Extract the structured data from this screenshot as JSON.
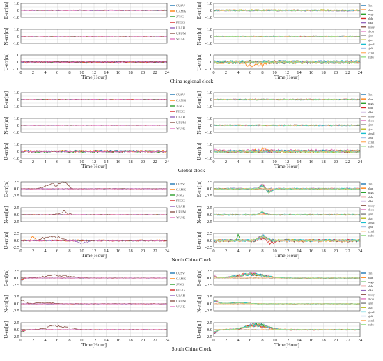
{
  "figure": {
    "captions": [
      "China regional clock",
      "Global clock",
      "North China Clock",
      "South China Clock"
    ],
    "xlabel": "Time[Hour]",
    "ylabels": [
      "E-err[m]",
      "N-err[m]",
      "U-err[m]"
    ],
    "xticks": [
      0,
      2,
      4,
      6,
      8,
      10,
      12,
      14,
      16,
      18,
      20,
      22,
      24
    ]
  },
  "legends": {
    "left": [
      "CUSV",
      "GAMG",
      "JFNG",
      "PTGG",
      "ULAB",
      "URUM",
      "WUH2"
    ],
    "right": [
      "flin",
      "hlun",
      "hngs",
      "hldr",
      "hlkt",
      "nmsy",
      "zhon",
      "sjzn",
      "sjsc",
      "sjhsd",
      "sjnk",
      "yxml",
      "mdw"
    ]
  },
  "colors": {
    "left": [
      "#1f77b4",
      "#ff7f0e",
      "#2ca02c",
      "#d62728",
      "#9467bd",
      "#8c564b",
      "#e377c2"
    ],
    "right": [
      "#1f77b4",
      "#ff7f0e",
      "#2ca02c",
      "#d62728",
      "#9467bd",
      "#8c564b",
      "#e377c2",
      "#7f7f7f",
      "#bcbd22",
      "#17becf",
      "#aec7e8",
      "#ffbb78",
      "#98df8a"
    ]
  },
  "chart_data": [
    {
      "type": "line",
      "title": "China regional clock",
      "xlabel": "Time[Hour]",
      "xlim": [
        0,
        24
      ],
      "panels": [
        {
          "ylabel": "E-err[m]",
          "ylim": [
            -1,
            1
          ],
          "yticks": [
            "1.0",
            "0",
            "-1.0"
          ],
          "left": {
            "series_noise": 0.05,
            "events": [
              [
                0,
                0.4,
                -0.9,
                0.6
              ]
            ]
          },
          "right": {
            "series_noise": 0.08,
            "events": [
              [
                0,
                0.3,
                0.9,
                0.3
              ],
              [
                1,
                0.5,
                -0.8,
                0.4
              ]
            ]
          }
        },
        {
          "ylabel": "N-err[m]",
          "ylim": [
            -1,
            1
          ],
          "yticks": [
            "1.0",
            "0",
            "-1.0"
          ],
          "left": {
            "series_noise": 0.03,
            "events": [
              [
                0,
                0.3,
                0.4,
                0.3
              ]
            ]
          },
          "right": {
            "series_noise": 0.06,
            "events": [
              [
                0,
                0.3,
                0.7,
                0.3
              ],
              [
                10,
                1.0,
                0.7,
                1.5
              ]
            ]
          }
        },
        {
          "ylabel": "U-err[m]",
          "ylim": [
            -1,
            1
          ],
          "yticks": [
            "1.0",
            "0",
            "-1.0"
          ],
          "left": {
            "series_noise": 0.12,
            "events": [
              [
                0,
                0.4,
                -0.8,
                0.3
              ]
            ]
          },
          "right": {
            "series_noise": 0.18,
            "events": [
              [
                0,
                0.4,
                -0.9,
                0.3
              ],
              [
                6,
                1.2,
                -0.6,
                1.0
              ],
              [
                10,
                1.0,
                0.7,
                1.3
              ],
              [
                8,
                0.8,
                -0.7,
                1.0
              ]
            ]
          }
        }
      ]
    },
    {
      "type": "line",
      "title": "Global clock",
      "xlabel": "Time[Hour]",
      "xlim": [
        0,
        24
      ],
      "panels": [
        {
          "ylabel": "E-err[m]",
          "ylim": [
            -1,
            1
          ],
          "yticks": [
            "1.0",
            "0",
            "-1.0"
          ],
          "left": {
            "series_noise": 0.04,
            "events": [
              [
                0,
                0.3,
                0.8,
                0.4
              ]
            ]
          },
          "right": {
            "series_noise": 0.06,
            "events": [
              [
                0,
                0.3,
                0.8,
                0.4
              ]
            ]
          }
        },
        {
          "ylabel": "N-err[m]",
          "ylim": [
            -1,
            1
          ],
          "yticks": [
            "1.0",
            "0",
            "-1.0"
          ],
          "left": {
            "series_noise": 0.03,
            "events": [
              [
                0,
                0.3,
                0.5,
                0.3
              ]
            ]
          },
          "right": {
            "series_noise": 0.06,
            "events": [
              [
                0,
                0.3,
                0.5,
                0.3
              ]
            ]
          }
        },
        {
          "ylabel": "U-err[m]",
          "ylim": [
            -1,
            1
          ],
          "yticks": [
            "1.0",
            "0",
            "-1.0"
          ],
          "left": {
            "series_noise": 0.12,
            "events": [
              [
                0,
                0.4,
                -0.8,
                0.4
              ],
              [
                8,
                0.6,
                -0.5,
                0.8
              ]
            ]
          },
          "right": {
            "series_noise": 0.2,
            "events": [
              [
                0,
                0.4,
                -0.8,
                0.4
              ],
              [
                10,
                1.5,
                -0.6,
                1.2
              ],
              [
                8,
                1.0,
                0.5,
                1.0
              ]
            ]
          }
        }
      ]
    },
    {
      "type": "line",
      "title": "North China Clock",
      "xlabel": "Time[Hour]",
      "xlim": [
        0,
        24
      ],
      "panels": [
        {
          "ylabel": "E-err[m]",
          "ylim": [
            -2.5,
            2.5
          ],
          "yticks": [
            "2.5",
            "0.0",
            "-2.5"
          ],
          "left": {
            "series_noise": 0.08,
            "events": [
              [
                5,
                1.4,
                2.2,
                5
              ],
              [
                7,
                0.9,
                3.0,
                5
              ]
            ]
          },
          "right": {
            "series_noise": 0.2,
            "events": [
              [
                8,
                0.5,
                2.0,
                0
              ],
              [
                9,
                0.6,
                -1.5,
                0
              ]
            ]
          }
        },
        {
          "ylabel": "N-err[m]",
          "ylim": [
            -2.5,
            2.5
          ],
          "yticks": [
            "2.5",
            "0.0",
            "-2.5"
          ],
          "left": {
            "series_noise": 0.08,
            "events": [
              [
                7,
                1.0,
                1.6,
                5
              ]
            ]
          },
          "right": {
            "series_noise": 0.15,
            "events": [
              [
                8,
                0.6,
                1.2,
                0
              ]
            ]
          }
        },
        {
          "ylabel": "U-err[m]",
          "ylim": [
            -2.5,
            2.5
          ],
          "yticks": [
            "2.5",
            "0.0",
            "-2.5"
          ],
          "left": {
            "series_noise": 0.2,
            "events": [
              [
                2,
                0.4,
                2.0,
                1
              ],
              [
                5,
                1.6,
                2.5,
                5
              ],
              [
                10,
                1.0,
                -1.2,
                4
              ]
            ]
          },
          "right": {
            "series_noise": 0.35,
            "events": [
              [
                4,
                0.3,
                2.2,
                2
              ],
              [
                8,
                0.8,
                2.0,
                7
              ],
              [
                9,
                1.5,
                -1.6,
                3
              ]
            ]
          }
        }
      ]
    },
    {
      "type": "line",
      "title": "South China Clock",
      "xlabel": "Time[Hour]",
      "xlim": [
        0,
        24
      ],
      "panels": [
        {
          "ylabel": "E-err[m]",
          "ylim": [
            -2.5,
            2.5
          ],
          "yticks": [
            "2.5",
            "0.0",
            "-2.5"
          ],
          "left": {
            "series_noise": 0.06,
            "events": [
              [
                6,
                3.0,
                1.3,
                5
              ],
              [
                0,
                0.5,
                -1.0,
                0
              ]
            ]
          },
          "right": {
            "series_noise": 0.07,
            "events": [
              [
                6,
                3.2,
                2.0,
                0
              ],
              [
                0,
                0.5,
                1.0,
                0
              ]
            ]
          }
        },
        {
          "ylabel": "N-err[m]",
          "ylim": [
            -2.5,
            2.5
          ],
          "yticks": [
            "2.5",
            "0.0",
            "-2.5"
          ],
          "left": {
            "series_noise": 0.06,
            "events": [
              [
                0,
                1.0,
                1.6,
                5
              ],
              [
                4,
                2.0,
                0.6,
                5
              ]
            ]
          },
          "right": {
            "series_noise": 0.07,
            "events": [
              [
                0,
                1.0,
                1.4,
                0
              ],
              [
                4,
                2.0,
                0.6,
                0
              ]
            ]
          }
        },
        {
          "ylabel": "U-err[m]",
          "ylim": [
            -2.5,
            2.5
          ],
          "yticks": [
            "2.5",
            "0.0",
            "-2.5"
          ],
          "left": {
            "series_noise": 0.1,
            "events": [
              [
                6,
                2.2,
                2.0,
                5
              ],
              [
                0,
                0.6,
                -1.2,
                0
              ]
            ]
          },
          "right": {
            "series_noise": 0.15,
            "events": [
              [
                7,
                2.4,
                2.5,
                0
              ],
              [
                0,
                0.6,
                -1.5,
                0
              ],
              [
                8,
                0.5,
                -1.0,
                1
              ]
            ]
          }
        }
      ]
    }
  ]
}
